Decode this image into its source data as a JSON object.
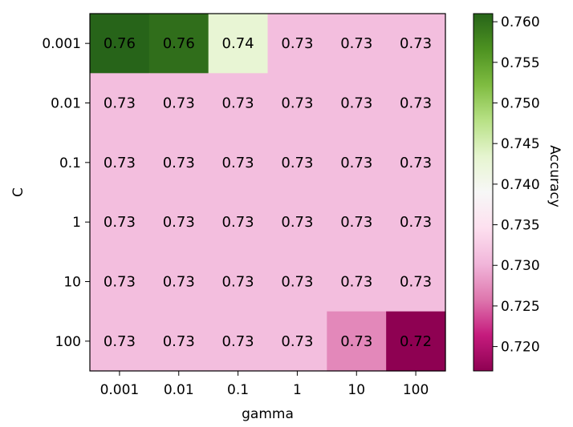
{
  "chart_data": {
    "type": "heatmap",
    "xlabel": "gamma",
    "ylabel": "C",
    "x_categories": [
      "0.001",
      "0.01",
      "0.1",
      "1",
      "10",
      "100"
    ],
    "y_categories": [
      "0.001",
      "0.01",
      "0.1",
      "1",
      "10",
      "100"
    ],
    "values": [
      [
        0.761,
        0.76,
        0.743,
        0.731,
        0.731,
        0.731
      ],
      [
        0.731,
        0.731,
        0.731,
        0.731,
        0.731,
        0.731
      ],
      [
        0.731,
        0.731,
        0.731,
        0.731,
        0.731,
        0.731
      ],
      [
        0.731,
        0.731,
        0.731,
        0.731,
        0.731,
        0.731
      ],
      [
        0.731,
        0.731,
        0.731,
        0.731,
        0.731,
        0.731
      ],
      [
        0.731,
        0.731,
        0.731,
        0.731,
        0.727,
        0.717
      ]
    ],
    "cell_labels": [
      [
        "0.76",
        "0.76",
        "0.74",
        "0.73",
        "0.73",
        "0.73"
      ],
      [
        "0.73",
        "0.73",
        "0.73",
        "0.73",
        "0.73",
        "0.73"
      ],
      [
        "0.73",
        "0.73",
        "0.73",
        "0.73",
        "0.73",
        "0.73"
      ],
      [
        "0.73",
        "0.73",
        "0.73",
        "0.73",
        "0.73",
        "0.73"
      ],
      [
        "0.73",
        "0.73",
        "0.73",
        "0.73",
        "0.73",
        "0.73"
      ],
      [
        "0.73",
        "0.73",
        "0.73",
        "0.73",
        "0.73",
        "0.72"
      ]
    ],
    "colorbar": {
      "label": "Accuracy",
      "colormap": "PiYG",
      "range": [
        0.717,
        0.761
      ],
      "ticks": [
        0.72,
        0.725,
        0.73,
        0.735,
        0.74,
        0.745,
        0.75,
        0.755,
        0.76
      ],
      "tick_labels": [
        "0.720",
        "0.725",
        "0.730",
        "0.735",
        "0.740",
        "0.745",
        "0.750",
        "0.755",
        "0.760"
      ]
    },
    "grid": false,
    "legend": "none"
  }
}
